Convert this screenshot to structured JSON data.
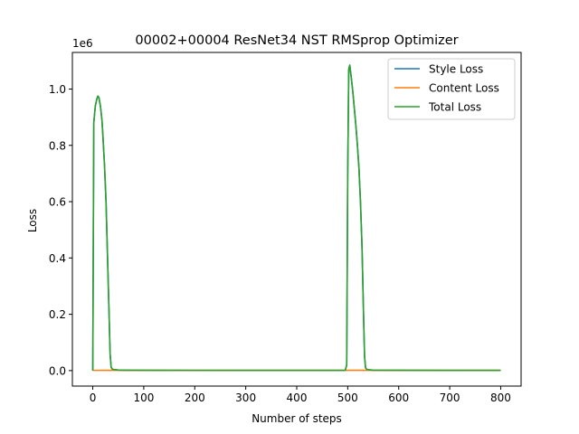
{
  "chart_data": {
    "type": "line",
    "title": "00002+00004 ResNet34 NST RMSprop Optimizer",
    "xlabel": "Number of steps",
    "ylabel": "Loss",
    "y_offset_label": "1e6",
    "xlim": [
      -40,
      840
    ],
    "ylim": [
      -0.055,
      1.13
    ],
    "x_ticks": [
      0,
      100,
      200,
      300,
      400,
      500,
      600,
      700,
      800
    ],
    "x_tick_labels": [
      "0",
      "100",
      "200",
      "300",
      "400",
      "500",
      "600",
      "700",
      "800"
    ],
    "y_ticks": [
      0.0,
      0.2,
      0.4,
      0.6,
      0.8,
      1.0
    ],
    "y_tick_labels": [
      "0.0",
      "0.2",
      "0.4",
      "0.6",
      "0.8",
      "1.0"
    ],
    "grid": false,
    "legend_position": "upper right",
    "series": [
      {
        "name": "Style Loss",
        "color": "#1f77b4",
        "x": [
          0,
          2,
          5,
          8,
          10,
          12,
          15,
          18,
          20,
          23,
          26,
          29,
          32,
          34,
          36,
          38,
          40,
          50,
          60,
          80,
          100,
          200,
          300,
          400,
          495,
          498,
          500,
          502,
          504,
          507,
          510,
          513,
          516,
          519,
          522,
          525,
          528,
          531,
          533,
          535,
          537,
          540,
          550,
          600,
          700,
          800
        ],
        "y": [
          0.0,
          0.88,
          0.94,
          0.965,
          0.975,
          0.97,
          0.94,
          0.89,
          0.83,
          0.73,
          0.6,
          0.4,
          0.2,
          0.06,
          0.012,
          0.006,
          0.004,
          0.002,
          0.0015,
          0.0012,
          0.001,
          0.0008,
          0.0007,
          0.0006,
          0.0006,
          0.02,
          0.7,
          1.07,
          1.085,
          1.04,
          0.99,
          0.93,
          0.87,
          0.8,
          0.72,
          0.6,
          0.44,
          0.2,
          0.05,
          0.01,
          0.005,
          0.003,
          0.0015,
          0.001,
          0.0007,
          0.0005
        ]
      },
      {
        "name": "Content Loss",
        "color": "#ff7f0e",
        "x": [
          0,
          100,
          200,
          300,
          400,
          500,
          600,
          700,
          800
        ],
        "y": [
          0.0008,
          0.0009,
          0.0009,
          0.0009,
          0.0009,
          0.001,
          0.0009,
          0.0009,
          0.0009
        ]
      },
      {
        "name": "Total Loss",
        "color": "#2ca02c",
        "x": [
          0,
          2,
          5,
          8,
          10,
          12,
          15,
          18,
          20,
          23,
          26,
          29,
          32,
          34,
          36,
          38,
          40,
          50,
          60,
          80,
          100,
          200,
          300,
          400,
          495,
          498,
          500,
          502,
          504,
          507,
          510,
          513,
          516,
          519,
          522,
          525,
          528,
          531,
          533,
          535,
          537,
          540,
          550,
          600,
          700,
          800
        ],
        "y": [
          0.0,
          0.88,
          0.94,
          0.965,
          0.975,
          0.97,
          0.94,
          0.89,
          0.83,
          0.73,
          0.6,
          0.4,
          0.2,
          0.06,
          0.012,
          0.006,
          0.004,
          0.002,
          0.0015,
          0.0012,
          0.001,
          0.0008,
          0.0007,
          0.0006,
          0.0006,
          0.02,
          0.7,
          1.07,
          1.085,
          1.04,
          0.99,
          0.93,
          0.87,
          0.8,
          0.72,
          0.6,
          0.44,
          0.2,
          0.05,
          0.01,
          0.005,
          0.003,
          0.0015,
          0.001,
          0.0007,
          0.0005
        ]
      }
    ]
  }
}
